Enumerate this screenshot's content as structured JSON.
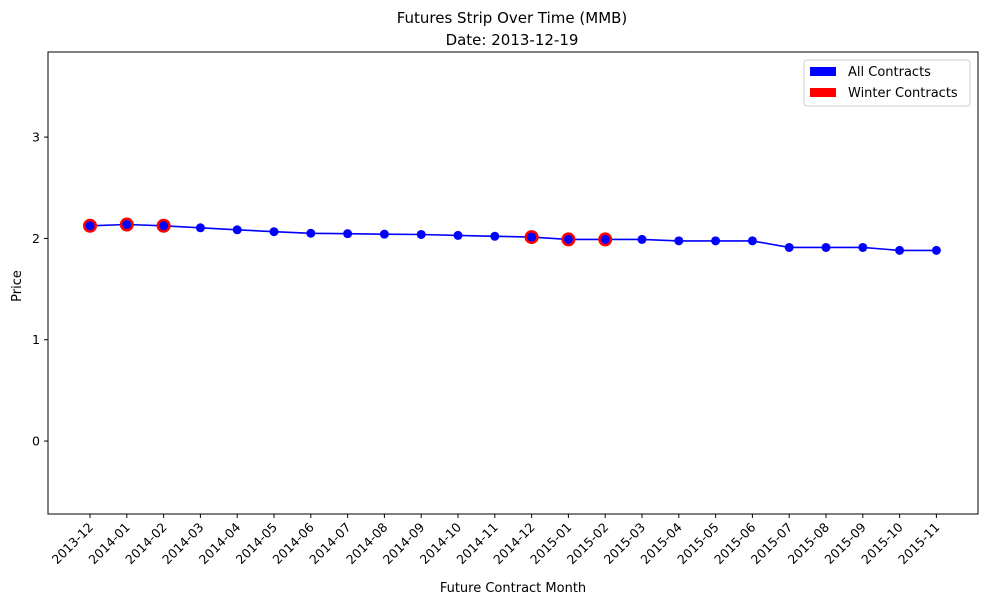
{
  "chart_data": {
    "type": "line",
    "title": "Futures Strip Over Time (MMB)",
    "subtitle": "Date: 2013-12-19",
    "xlabel": "Future Contract Month",
    "ylabel": "Price",
    "categories": [
      "2013-12",
      "2014-01",
      "2014-02",
      "2014-03",
      "2014-04",
      "2014-05",
      "2014-06",
      "2014-07",
      "2014-08",
      "2014-09",
      "2014-10",
      "2014-11",
      "2014-12",
      "2015-01",
      "2015-02",
      "2015-03",
      "2015-04",
      "2015-05",
      "2015-06",
      "2015-07",
      "2015-08",
      "2015-09",
      "2015-10",
      "2015-11"
    ],
    "ylim": [
      -0.72,
      3.84
    ],
    "yticks": [
      0,
      1,
      2,
      3
    ],
    "grid": false,
    "legend_position": "top-right",
    "series": [
      {
        "name": "All Contracts",
        "color": "#0000ff",
        "values": [
          2.125,
          2.137,
          2.125,
          2.105,
          2.085,
          2.066,
          2.051,
          2.047,
          2.042,
          2.039,
          2.03,
          2.021,
          2.013,
          1.99,
          1.99,
          1.99,
          1.976,
          1.976,
          1.976,
          1.911,
          1.911,
          1.911,
          1.882,
          1.882
        ]
      }
    ],
    "highlight": {
      "name": "Winter Contracts",
      "color": "#ff0000",
      "categories": [
        "2013-12",
        "2014-01",
        "2014-02",
        "2014-12",
        "2015-01",
        "2015-02"
      ]
    }
  }
}
